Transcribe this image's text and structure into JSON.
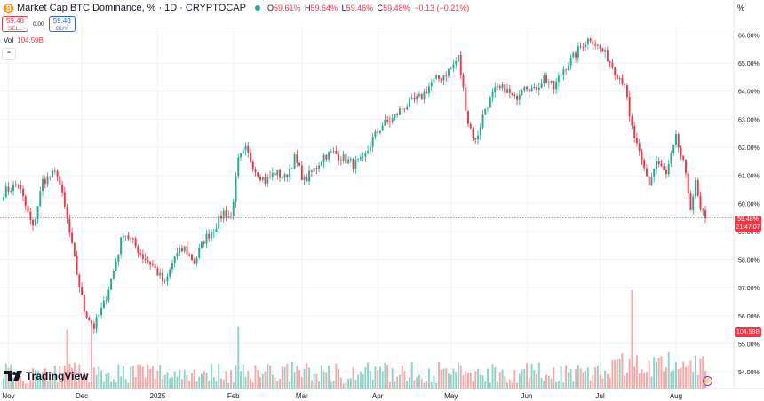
{
  "header": {
    "symbol_title": "Market Cap BTC Dominance, %",
    "interval": "1D",
    "exchange": "CRYPTOCAP",
    "separator": "·",
    "symbol_icon": "bitcoin-icon",
    "ohlc": {
      "o_label": "O",
      "o_value": "59.61%",
      "h_label": "H",
      "h_value": "59.64%",
      "l_label": "L",
      "l_value": "59.46%",
      "c_label": "C",
      "c_value": "59.48%",
      "change": "−0.13 (−0.21%)"
    },
    "percent_toggle": "%"
  },
  "trade": {
    "sell_price": "59.48",
    "sell_label": "SELL",
    "spread": "0.00",
    "buy_price": "59.48",
    "buy_label": "BUY"
  },
  "volume": {
    "label": "Vol",
    "value": "104.59B"
  },
  "price_tags": {
    "last_price": "59.48%",
    "countdown": "21:47:07",
    "volume_tag": "104.59B"
  },
  "branding": {
    "name": "TradingView"
  },
  "colors": {
    "up": "#22ab94",
    "down": "#f23645",
    "vol_up": "#8fd3c7",
    "vol_down": "#f7a9a7",
    "grid": "#f0f3fa"
  },
  "chart_data": {
    "type": "candlestick",
    "title": "Market Cap BTC Dominance, %",
    "interval": "1D",
    "y_axis": {
      "ticks": [
        "66.00%",
        "65.00%",
        "64.00%",
        "63.00%",
        "62.00%",
        "61.00%",
        "60.00%",
        "59.00%",
        "58.00%",
        "57.00%",
        "56.00%",
        "55.00%",
        "54.00%"
      ],
      "ylim": [
        53.4,
        66.3
      ],
      "position": "right"
    },
    "x_axis": {
      "ticks": [
        {
          "label": "Nov",
          "date": "2024-11-01"
        },
        {
          "label": "Dec",
          "date": "2024-12-01"
        },
        {
          "label": "2025",
          "date": "2025-01-01"
        },
        {
          "label": "Feb",
          "date": "2025-02-01"
        },
        {
          "label": "Mar",
          "date": "2025-03-01"
        },
        {
          "label": "Apr",
          "date": "2025-04-01"
        },
        {
          "label": "May",
          "date": "2025-05-01"
        },
        {
          "label": "Jun",
          "date": "2025-06-01"
        },
        {
          "label": "Jul",
          "date": "2025-07-01"
        },
        {
          "label": "Aug",
          "date": "2025-08-01"
        }
      ],
      "start_date": "2024-10-30",
      "end_date": "2025-08-13"
    },
    "last_price": 59.48,
    "close_keypoints": [
      {
        "date": "2024-10-30",
        "close": 60.4
      },
      {
        "date": "2024-11-05",
        "close": 60.7
      },
      {
        "date": "2024-11-11",
        "close": 59.1
      },
      {
        "date": "2024-11-15",
        "close": 60.8
      },
      {
        "date": "2024-11-21",
        "close": 61.1
      },
      {
        "date": "2024-11-25",
        "close": 59.4
      },
      {
        "date": "2024-11-29",
        "close": 57.5
      },
      {
        "date": "2024-12-02",
        "close": 56.2
      },
      {
        "date": "2024-12-06",
        "close": 55.6
      },
      {
        "date": "2024-12-10",
        "close": 56.4
      },
      {
        "date": "2024-12-14",
        "close": 57.6
      },
      {
        "date": "2024-12-18",
        "close": 59.0
      },
      {
        "date": "2024-12-22",
        "close": 58.6
      },
      {
        "date": "2024-12-26",
        "close": 58.1
      },
      {
        "date": "2024-12-30",
        "close": 57.8
      },
      {
        "date": "2025-01-04",
        "close": 57.1
      },
      {
        "date": "2025-01-08",
        "close": 58.1
      },
      {
        "date": "2025-01-12",
        "close": 58.4
      },
      {
        "date": "2025-01-16",
        "close": 57.9
      },
      {
        "date": "2025-01-20",
        "close": 58.7
      },
      {
        "date": "2025-01-24",
        "close": 59.1
      },
      {
        "date": "2025-01-28",
        "close": 59.7
      },
      {
        "date": "2025-01-31",
        "close": 59.5
      },
      {
        "date": "2025-02-03",
        "close": 61.5
      },
      {
        "date": "2025-02-06",
        "close": 61.9
      },
      {
        "date": "2025-02-10",
        "close": 61.2
      },
      {
        "date": "2025-02-14",
        "close": 60.8
      },
      {
        "date": "2025-02-18",
        "close": 61.1
      },
      {
        "date": "2025-02-22",
        "close": 60.9
      },
      {
        "date": "2025-02-26",
        "close": 61.6
      },
      {
        "date": "2025-03-02",
        "close": 60.8
      },
      {
        "date": "2025-03-06",
        "close": 61.2
      },
      {
        "date": "2025-03-10",
        "close": 61.7
      },
      {
        "date": "2025-03-14",
        "close": 61.8
      },
      {
        "date": "2025-03-18",
        "close": 61.6
      },
      {
        "date": "2025-03-22",
        "close": 61.4
      },
      {
        "date": "2025-03-26",
        "close": 61.5
      },
      {
        "date": "2025-03-30",
        "close": 62.3
      },
      {
        "date": "2025-04-03",
        "close": 62.8
      },
      {
        "date": "2025-04-07",
        "close": 63.0
      },
      {
        "date": "2025-04-11",
        "close": 63.4
      },
      {
        "date": "2025-04-15",
        "close": 63.6
      },
      {
        "date": "2025-04-19",
        "close": 63.8
      },
      {
        "date": "2025-04-23",
        "close": 64.3
      },
      {
        "date": "2025-04-27",
        "close": 64.5
      },
      {
        "date": "2025-05-01",
        "close": 64.8
      },
      {
        "date": "2025-05-04",
        "close": 65.2
      },
      {
        "date": "2025-05-08",
        "close": 62.9
      },
      {
        "date": "2025-05-11",
        "close": 62.2
      },
      {
        "date": "2025-05-15",
        "close": 63.4
      },
      {
        "date": "2025-05-19",
        "close": 64.0
      },
      {
        "date": "2025-05-23",
        "close": 64.1
      },
      {
        "date": "2025-05-27",
        "close": 63.7
      },
      {
        "date": "2025-05-31",
        "close": 64.3
      },
      {
        "date": "2025-06-04",
        "close": 64.0
      },
      {
        "date": "2025-06-08",
        "close": 64.5
      },
      {
        "date": "2025-06-12",
        "close": 64.1
      },
      {
        "date": "2025-06-16",
        "close": 64.8
      },
      {
        "date": "2025-06-20",
        "close": 65.2
      },
      {
        "date": "2025-06-24",
        "close": 65.7
      },
      {
        "date": "2025-06-27",
        "close": 65.9
      },
      {
        "date": "2025-07-01",
        "close": 65.5
      },
      {
        "date": "2025-07-04",
        "close": 65.2
      },
      {
        "date": "2025-07-08",
        "close": 64.6
      },
      {
        "date": "2025-07-11",
        "close": 64.3
      },
      {
        "date": "2025-07-13",
        "close": 63.0
      },
      {
        "date": "2025-07-17",
        "close": 61.7
      },
      {
        "date": "2025-07-21",
        "close": 60.7
      },
      {
        "date": "2025-07-24",
        "close": 61.5
      },
      {
        "date": "2025-07-28",
        "close": 61.0
      },
      {
        "date": "2025-08-01",
        "close": 62.3
      },
      {
        "date": "2025-08-04",
        "close": 61.4
      },
      {
        "date": "2025-08-07",
        "close": 59.9
      },
      {
        "date": "2025-08-09",
        "close": 60.7
      },
      {
        "date": "2025-08-11",
        "close": 59.7
      },
      {
        "date": "2025-08-13",
        "close": 59.48
      }
    ],
    "volume": {
      "unit": "B",
      "last": 104.59,
      "approx_range": [
        10,
        200
      ],
      "spikes": [
        {
          "date": "2024-11-25",
          "value": 120
        },
        {
          "date": "2024-12-05",
          "value": 135
        },
        {
          "date": "2025-02-03",
          "value": 125
        },
        {
          "date": "2025-07-14",
          "value": 200
        }
      ]
    }
  }
}
